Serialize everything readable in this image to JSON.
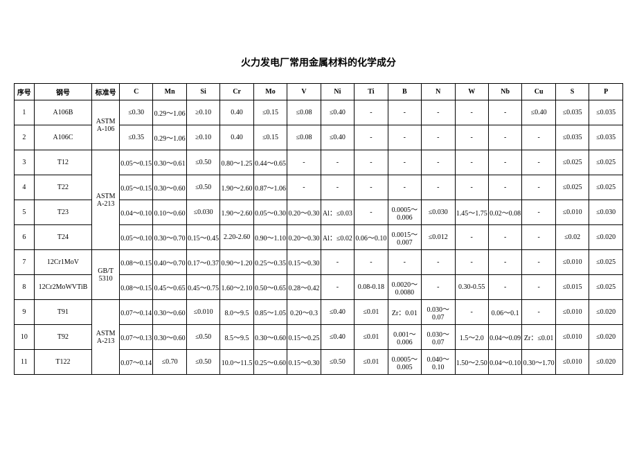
{
  "title": "火力发电厂常用金属材料的化学成分",
  "table": {
    "background_color": "#ffffff",
    "border_color": "#000000",
    "font_size": 10,
    "header_fontsize": 10,
    "title_fontsize": 14,
    "text_color": "#000000",
    "headers": [
      "序号",
      "钢号",
      "标准号",
      "C",
      "Mn",
      "Si",
      "Cr",
      "Mo",
      "V",
      "Ni",
      "Ti",
      "B",
      "N",
      "W",
      "Nb",
      "Cu",
      "S",
      "P"
    ],
    "std_groups": [
      {
        "label": "ASTM A-106",
        "span": 2
      },
      {
        "label": "ASTM A-213",
        "span": 4
      },
      {
        "label": "GB/T 5310",
        "span": 2
      },
      {
        "label": "ASTM A-213",
        "span": 3
      }
    ],
    "rows": [
      {
        "seq": "1",
        "steel": "A106B",
        "cells": [
          "≤0.30",
          "0.29～1.06",
          "≥0.10",
          "0.40",
          "≤0.15",
          "≤0.08",
          "≤0.40",
          "-",
          "-",
          "-",
          "-",
          "-",
          "≤0.40",
          "≤0.035",
          "≤0.035"
        ]
      },
      {
        "seq": "2",
        "steel": "A106C",
        "cells": [
          "≤0.35",
          "0.29～1.06",
          "≥0.10",
          "0.40",
          "≤0.15",
          "≤0.08",
          "≤0.40",
          "-",
          "-",
          "-",
          "-",
          "-",
          "-",
          "≤0.035",
          "≤0.035"
        ]
      },
      {
        "seq": "3",
        "steel": "T12",
        "cells": [
          "0.05～0.15",
          "0.30～0.61",
          "≤0.50",
          "0.80～1.25",
          "0.44～0.65",
          "-",
          "-",
          "-",
          "-",
          "-",
          "-",
          "-",
          "-",
          "≤0.025",
          "≤0.025"
        ]
      },
      {
        "seq": "4",
        "steel": "T22",
        "cells": [
          "0.05～0.15",
          "0.30～0.60",
          "≤0.50",
          "1.90～2.60",
          "0.87～1.06",
          "-",
          "-",
          "-",
          "-",
          "-",
          "-",
          "-",
          "-",
          "≤0.025",
          "≤0.025"
        ]
      },
      {
        "seq": "5",
        "steel": "T23",
        "cells": [
          "0.04～0.10",
          "0.10～0.60",
          "≤0.030",
          "1.90～2.60",
          "0.05～0.30",
          "0.20～0.30",
          "Al：≤0.03",
          "-",
          "0.0005～0.006",
          "≤0.030",
          "1.45～1.75",
          "0.02～0.08",
          "-",
          "≤0.010",
          "≤0.030"
        ]
      },
      {
        "seq": "6",
        "steel": "T24",
        "cells": [
          "0.05～0.10",
          "0.30～0.70",
          "0.15～0.45",
          "2.20-2.60",
          "0.90～1.10",
          "0.20～0.30",
          "Al：≤0.02",
          "0.06～0.10",
          "0.0015～0.007",
          "≤0.012",
          "-",
          "-",
          "-",
          "≤0.02",
          "≤0.020"
        ]
      },
      {
        "seq": "7",
        "steel": "12Cr1MoV",
        "cells": [
          "0.08～0.15",
          "0.40～0.70",
          "0.17～0.37",
          "0.90～1.20",
          "0.25～0.35",
          "0.15～0.30",
          "-",
          "-",
          "-",
          "-",
          "-",
          "-",
          "-",
          "≤0.010",
          "≤0.025"
        ]
      },
      {
        "seq": "8",
        "steel": "12Cr2MoWVTiB",
        "cells": [
          "0.08～0.15",
          "0.45～0.65",
          "0.45～0.75",
          "1.60～2.10",
          "0.50～0.65",
          "0.28～0.42",
          "-",
          "0.08-0.18",
          "0.0020～0.0080",
          "-",
          "0.30-0.55",
          "-",
          "-",
          "≤0.015",
          "≤0.025"
        ]
      },
      {
        "seq": "9",
        "steel": "T91",
        "cells": [
          "0.07～0.14",
          "0.30～0.60",
          "≤0.010",
          "8.0～9.5",
          "0.85～1.05",
          "0.20～0.3",
          "≤0.40",
          "≤0.01",
          "Zr：0.01",
          "0.030～0.07",
          "-",
          "0.06～0.1",
          "-",
          "≤0.010",
          "≤0.020"
        ]
      },
      {
        "seq": "10",
        "steel": "T92",
        "cells": [
          "0.07～0.13",
          "0.30～0.60",
          "≤0.50",
          "8.5～9.5",
          "0.30～0.60",
          "0.15～0.25",
          "≤0.40",
          "≤0.01",
          "0.001～0.006",
          "0.030～0.07",
          "1.5～2.0",
          "0.04～0.09",
          "Zr：≤0.01",
          "≤0.010",
          "≤0.020"
        ]
      },
      {
        "seq": "11",
        "steel": "T122",
        "cells": [
          "0.07～0.14",
          "≤0.70",
          "≤0.50",
          "10.0～11.5",
          "0.25～0.60",
          "0.15～0.30",
          "≤0.50",
          "≤0.01",
          "0.0005～0.005",
          "0.040～0.10",
          "1.50～2.50",
          "0.04～0.10",
          "0.30～1.70",
          "≤0.010",
          "≤0.020"
        ]
      }
    ]
  }
}
